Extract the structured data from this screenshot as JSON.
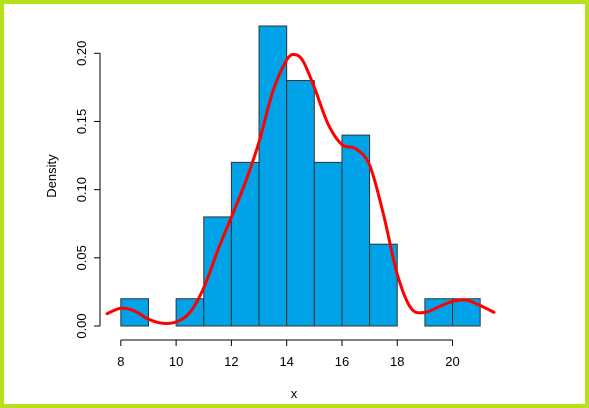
{
  "chart_data": {
    "type": "bar",
    "xlabel": "x",
    "ylabel": "Density",
    "xlim": [
      7.5,
      21.5
    ],
    "ylim": [
      0,
      0.22
    ],
    "grid": false,
    "x_ticks": [
      8,
      10,
      12,
      14,
      16,
      18,
      20
    ],
    "x_tick_labels": [
      "8",
      "10",
      "12",
      "14",
      "16",
      "18",
      "20"
    ],
    "y_ticks": [
      0.0,
      0.05,
      0.1,
      0.15,
      0.2
    ],
    "y_tick_labels": [
      "0.00",
      "0.05",
      "0.10",
      "0.15",
      "0.20"
    ],
    "histogram": {
      "bins": [
        {
          "x0": 8,
          "x1": 9,
          "value": 0.02
        },
        {
          "x0": 9,
          "x1": 10,
          "value": 0.0
        },
        {
          "x0": 10,
          "x1": 11,
          "value": 0.02
        },
        {
          "x0": 11,
          "x1": 12,
          "value": 0.08
        },
        {
          "x0": 12,
          "x1": 13,
          "value": 0.12
        },
        {
          "x0": 13,
          "x1": 14,
          "value": 0.22
        },
        {
          "x0": 14,
          "x1": 15,
          "value": 0.18
        },
        {
          "x0": 15,
          "x1": 16,
          "value": 0.12
        },
        {
          "x0": 16,
          "x1": 17,
          "value": 0.14
        },
        {
          "x0": 17,
          "x1": 18,
          "value": 0.06
        },
        {
          "x0": 18,
          "x1": 19,
          "value": 0.0
        },
        {
          "x0": 19,
          "x1": 20,
          "value": 0.02
        },
        {
          "x0": 20,
          "x1": 21,
          "value": 0.02
        }
      ],
      "fill_color": "#00a2e8",
      "edge_color": "#333333"
    },
    "density_curve": {
      "color": "#ff0000",
      "x": [
        7.5,
        8.0,
        8.5,
        9.0,
        9.5,
        10.0,
        10.5,
        11.0,
        11.5,
        12.0,
        12.5,
        13.0,
        13.5,
        14.0,
        14.3,
        14.6,
        15.0,
        15.5,
        16.0,
        16.5,
        17.0,
        17.5,
        18.0,
        18.5,
        19.0,
        19.5,
        20.0,
        20.5,
        21.0,
        21.5
      ],
      "y": [
        0.009,
        0.013,
        0.011,
        0.005,
        0.002,
        0.003,
        0.01,
        0.028,
        0.055,
        0.08,
        0.105,
        0.135,
        0.172,
        0.195,
        0.199,
        0.194,
        0.175,
        0.148,
        0.133,
        0.13,
        0.118,
        0.082,
        0.038,
        0.013,
        0.01,
        0.014,
        0.018,
        0.019,
        0.015,
        0.01
      ]
    }
  }
}
